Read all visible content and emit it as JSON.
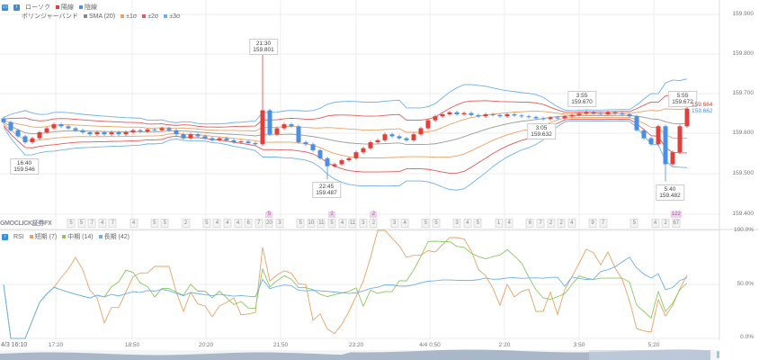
{
  "legend_main": {
    "candles": "ローソク",
    "up": "陽線",
    "down": "陰線",
    "bollinger": "ボリンジャーバンド",
    "sma": "SMA (20)",
    "s1": "±1σ",
    "s2": "±2σ",
    "s3": "±3σ"
  },
  "legend_rsi": {
    "rsi": "RSI",
    "short": "短期 (7)",
    "mid": "中期 (14)",
    "long": "長期 (42)"
  },
  "colors": {
    "up": "#e0403c",
    "down": "#4a90e2",
    "sma": "#9a9a9a",
    "s1": "#e8a266",
    "s2": "#e05a5a",
    "s3": "#6eb0ea",
    "rsi_short": "#e8a266",
    "rsi_mid": "#8cc860",
    "rsi_long": "#6eb0ea"
  },
  "y_axis": [
    "159.900",
    "159.800",
    "159.700",
    "159.600",
    "159.500",
    "159.400"
  ],
  "rsi_axis": [
    "100.0%",
    "50.0%",
    "0.0%"
  ],
  "x_axis": [
    "4/3 16:10",
    "17:20",
    "18:50",
    "20:20",
    "21:50",
    "23:20",
    "4/4 0:50",
    "2:20",
    "3:50",
    "5:20"
  ],
  "annotations": [
    {
      "time": "21:30",
      "price": "159.801"
    },
    {
      "time": "16:40",
      "price": "159.546"
    },
    {
      "time": "22:45",
      "price": "159.487"
    },
    {
      "time": "3:55",
      "price": "159.670"
    },
    {
      "time": "3:05",
      "price": "159.632"
    },
    {
      "time": "5:55",
      "price": "159.672"
    },
    {
      "time": "5:40",
      "price": "159.482"
    }
  ],
  "current": {
    "bid": "159.664",
    "ask": "159.662"
  },
  "volume_logo": "GMOCLICK証券FX",
  "volume": [
    "5",
    "5",
    "7",
    "4",
    "7",
    null,
    "4",
    null,
    "5",
    "5",
    null,
    "2",
    null,
    "5",
    "4",
    "4",
    "4",
    "6",
    "7",
    "20",
    "3",
    null,
    "5",
    "10",
    "11",
    "5",
    "4",
    "11",
    "3",
    "2",
    null,
    "3",
    "4",
    null,
    "5",
    "5",
    null,
    "3",
    "4",
    "5",
    null,
    "1",
    "4",
    null,
    "6",
    "7",
    "2",
    "2",
    "4",
    null,
    "9",
    "7",
    null,
    null,
    "5",
    null,
    "4",
    "2",
    "67"
  ],
  "volume_markers": {
    "19": "5",
    "25": "2",
    "29": "2",
    "58": "122"
  },
  "chart_data": {
    "type": "candlestick",
    "ylim": [
      159.4,
      159.9
    ],
    "closes": [
      159.63,
      159.61,
      159.595,
      159.58,
      159.59,
      159.605,
      159.615,
      159.625,
      159.62,
      159.615,
      159.61,
      159.605,
      159.6,
      159.605,
      159.6,
      159.605,
      159.6,
      159.605,
      159.61,
      159.607,
      159.612,
      159.61,
      159.615,
      159.61,
      159.6,
      159.59,
      159.6,
      159.595,
      159.59,
      159.585,
      159.59,
      159.585,
      159.58,
      159.582,
      159.578,
      159.575,
      159.66,
      159.6,
      159.615,
      159.625,
      159.62,
      159.58,
      159.575,
      159.56,
      159.54,
      159.52,
      159.525,
      159.535,
      159.54,
      159.555,
      159.565,
      159.58,
      159.585,
      159.6,
      159.595,
      159.59,
      159.585,
      159.6,
      159.615,
      159.635,
      159.645,
      159.65,
      159.655,
      159.65,
      159.653,
      159.648,
      159.645,
      159.65,
      159.648,
      159.645,
      159.65,
      159.647,
      159.645,
      159.643,
      159.64,
      159.638,
      159.642,
      159.64,
      159.645,
      159.648,
      159.652,
      159.655,
      159.652,
      159.65,
      159.655,
      159.652,
      159.65,
      159.645,
      159.61,
      159.59,
      159.575,
      159.62,
      159.525,
      159.555,
      159.62,
      159.664
    ],
    "extremes": {
      "high": 159.801,
      "low": 159.482
    }
  }
}
